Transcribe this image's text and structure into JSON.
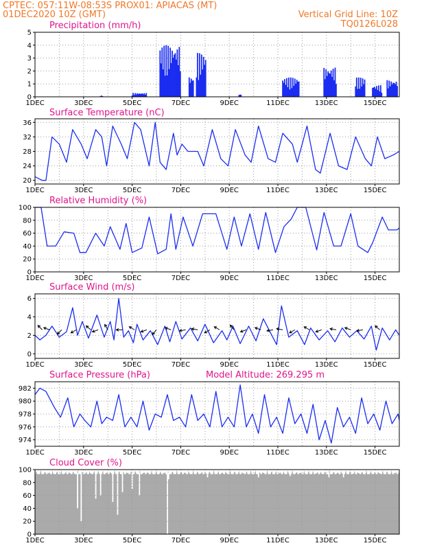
{
  "header": {
    "line1_left": "CPTEC:   057:11W-08:53S   PROX01: APIACAS (MT)",
    "line2_left": "01DEC2020 10Z (GMT)",
    "line2_right": "Vertical Grid Line: 10Z",
    "line3_right": "TQ0126L028"
  },
  "colors": {
    "header": "#f07828",
    "title": "#e0148c",
    "series": "#1a2cf0",
    "cloud": "#aaaaaa"
  },
  "x_tick_labels": [
    "1DEC",
    "3DEC",
    "5DEC",
    "7DEC",
    "9DEC",
    "11DEC",
    "13DEC",
    "15DEC"
  ],
  "chart_data": [
    {
      "id": "precip",
      "type": "bar",
      "title": "Precipitation (mm/h)",
      "ylim": [
        0,
        5
      ],
      "yticks": [
        0,
        1,
        2,
        3,
        4,
        5
      ],
      "x_day_start": 1,
      "x_day_end": 16,
      "step_hours": 1,
      "values_pattern": [
        [
          5.0,
          5.6,
          0.3
        ],
        [
          6.15,
          7.0,
          4.0
        ],
        [
          7.35,
          7.55,
          1.6
        ],
        [
          7.65,
          8.05,
          3.4
        ],
        [
          11.2,
          11.9,
          1.5
        ],
        [
          12.9,
          13.4,
          2.3
        ],
        [
          14.2,
          14.6,
          1.5
        ],
        [
          14.9,
          15.3,
          0.9
        ],
        [
          15.5,
          15.95,
          1.3
        ],
        [
          3.7,
          3.8,
          0.1
        ],
        [
          9.4,
          9.5,
          0.2
        ]
      ],
      "grid": "dotted"
    },
    {
      "id": "temp",
      "type": "line",
      "title": "Surface Temperature (nC)",
      "ylim": [
        19,
        37
      ],
      "yticks": [
        20,
        24,
        28,
        32,
        36
      ],
      "x_days": [
        1.0,
        1.3,
        1.45,
        1.7,
        2.0,
        2.3,
        2.55,
        2.9,
        3.15,
        3.5,
        3.75,
        3.95,
        4.2,
        4.55,
        4.8,
        5.1,
        5.35,
        5.7,
        5.95,
        6.15,
        6.4,
        6.7,
        6.85,
        7.05,
        7.3,
        7.7,
        7.95,
        8.3,
        8.65,
        8.95,
        9.25,
        9.65,
        9.9,
        10.2,
        10.6,
        10.9,
        11.2,
        11.6,
        11.8,
        12.2,
        12.55,
        12.75,
        13.15,
        13.5,
        13.85,
        14.2,
        14.6,
        14.85,
        15.1,
        15.4,
        15.75,
        16.0
      ],
      "values": [
        21,
        20,
        20,
        32,
        30,
        25,
        34,
        30,
        26,
        34,
        32,
        24,
        35,
        30,
        26,
        36,
        34,
        24,
        36,
        25,
        23,
        33,
        27,
        30,
        28,
        28,
        24,
        34,
        26,
        24,
        34,
        27,
        25,
        35,
        26,
        25,
        33,
        30,
        25,
        35,
        23,
        22,
        33,
        24,
        23,
        32,
        26,
        24,
        32,
        26,
        27,
        28
      ],
      "grid": "dotted"
    },
    {
      "id": "rh",
      "type": "line",
      "title": "Relative Humidity (%)",
      "ylim": [
        0,
        100
      ],
      "yticks": [
        0,
        20,
        40,
        60,
        80,
        100
      ],
      "x_days": [
        1.0,
        1.25,
        1.5,
        1.85,
        2.2,
        2.6,
        2.85,
        3.1,
        3.5,
        3.85,
        4.1,
        4.5,
        4.75,
        5.0,
        5.4,
        5.7,
        6.05,
        6.4,
        6.6,
        6.8,
        7.1,
        7.5,
        7.9,
        8.2,
        8.45,
        8.9,
        9.2,
        9.5,
        9.85,
        10.2,
        10.5,
        10.9,
        11.25,
        11.55,
        11.8,
        12.15,
        12.6,
        12.9,
        13.3,
        13.6,
        14.0,
        14.3,
        14.7,
        14.9,
        15.3,
        15.55,
        15.9,
        16.0
      ],
      "values": [
        100,
        100,
        40,
        40,
        62,
        60,
        30,
        30,
        60,
        40,
        70,
        35,
        75,
        30,
        37,
        85,
        28,
        35,
        90,
        35,
        85,
        40,
        90,
        90,
        90,
        35,
        85,
        40,
        90,
        35,
        92,
        30,
        70,
        82,
        100,
        100,
        34,
        92,
        40,
        40,
        90,
        40,
        30,
        45,
        85,
        65,
        65,
        68
      ],
      "grid": "dotted"
    },
    {
      "id": "wind",
      "type": "line",
      "title": "Surface Wind (m/s)",
      "ylim": [
        -0.5,
        6.5
      ],
      "yticks": [
        0,
        2,
        4,
        6
      ],
      "x_days": [
        1.0,
        1.2,
        1.45,
        1.7,
        2.0,
        2.3,
        2.55,
        2.75,
        2.95,
        3.2,
        3.55,
        3.85,
        4.1,
        4.25,
        4.45,
        4.65,
        4.85,
        5.05,
        5.2,
        5.45,
        5.75,
        6.05,
        6.35,
        6.55,
        6.8,
        7.05,
        7.4,
        7.7,
        8.0,
        8.35,
        8.7,
        8.9,
        9.15,
        9.45,
        9.8,
        10.1,
        10.4,
        10.75,
        10.95,
        11.15,
        11.45,
        11.8,
        12.1,
        12.35,
        12.7,
        13.05,
        13.35,
        13.65,
        13.95,
        14.25,
        14.55,
        14.85,
        15.05,
        15.3,
        15.6,
        15.85,
        16.0
      ],
      "values": [
        2.0,
        1.5,
        2.0,
        3.0,
        1.8,
        2.4,
        5.0,
        2.0,
        3.5,
        1.7,
        4.2,
        1.8,
        3.5,
        1.5,
        6.0,
        1.8,
        2.5,
        1.2,
        3.2,
        1.5,
        2.5,
        1.0,
        3.0,
        1.3,
        3.5,
        1.6,
        2.8,
        1.4,
        3.2,
        1.2,
        2.5,
        1.5,
        3.0,
        1.1,
        3.0,
        1.4,
        3.8,
        2.0,
        1.0,
        5.2,
        1.8,
        2.5,
        1.0,
        2.8,
        1.5,
        2.5,
        1.3,
        2.8,
        1.8,
        2.5,
        1.6,
        3.0,
        0.4,
        2.8,
        1.5,
        2.6,
        2.0
      ],
      "barbs_x_days": [
        1.3,
        1.6,
        2.1,
        2.7,
        3.3,
        3.6,
        4.0,
        4.6,
        5.1,
        5.6,
        6.0,
        6.6,
        7.2,
        7.7,
        8.2,
        8.6,
        9.2,
        9.7,
        10.3,
        10.8,
        11.2,
        11.7,
        12.3,
        12.8,
        13.4,
        14.0,
        14.5,
        15.2
      ],
      "barbs_angles_deg": [
        135,
        160,
        225,
        210,
        140,
        200,
        120,
        180,
        150,
        200,
        230,
        160,
        190,
        170,
        210,
        150,
        130,
        200,
        160,
        190,
        170,
        210,
        150,
        200,
        170,
        160,
        190,
        140
      ],
      "grid": "dotted"
    },
    {
      "id": "pressure",
      "type": "line",
      "title": "Surface Pressure (hPa)",
      "annotation": "Model Altitude: 269.295 m",
      "ylim": [
        973,
        983
      ],
      "yticks": [
        974,
        976,
        978,
        980,
        982
      ],
      "x_days": [
        1.0,
        1.2,
        1.45,
        1.8,
        2.05,
        2.35,
        2.6,
        2.85,
        3.05,
        3.3,
        3.55,
        3.75,
        3.95,
        4.2,
        4.45,
        4.7,
        4.95,
        5.2,
        5.45,
        5.7,
        5.95,
        6.2,
        6.45,
        6.7,
        6.95,
        7.2,
        7.45,
        7.7,
        7.95,
        8.2,
        8.45,
        8.7,
        8.95,
        9.2,
        9.45,
        9.7,
        9.95,
        10.2,
        10.45,
        10.7,
        10.95,
        11.2,
        11.45,
        11.7,
        11.95,
        12.2,
        12.45,
        12.7,
        12.95,
        13.2,
        13.45,
        13.7,
        13.95,
        14.2,
        14.45,
        14.7,
        14.95,
        15.2,
        15.45,
        15.7,
        15.95,
        16.0
      ],
      "values": [
        981,
        982,
        981.5,
        979,
        977.5,
        980.5,
        976,
        978,
        977,
        976,
        980,
        976.5,
        977.5,
        977,
        981,
        976,
        977.5,
        976,
        980,
        975.5,
        978,
        977.5,
        981,
        977,
        977.5,
        976,
        981,
        977,
        978,
        976,
        981.5,
        976,
        977.5,
        976,
        982.5,
        976,
        978,
        975,
        981,
        976,
        977.5,
        975,
        980.5,
        976.5,
        978,
        975,
        979.5,
        974,
        977,
        973.5,
        979,
        976,
        977.5,
        975,
        980.5,
        976.5,
        978,
        975.5,
        980,
        976.5,
        978,
        977
      ],
      "grid": "dotted"
    },
    {
      "id": "cloud",
      "type": "area",
      "title": "Cloud Cover (%)",
      "ylim": [
        0,
        100
      ],
      "yticks": [
        0,
        20,
        40,
        60,
        80,
        100
      ],
      "x_day_start": 1,
      "x_day_end": 16,
      "drops_days": [
        2.75,
        2.9,
        3.5,
        3.7,
        4.2,
        4.4,
        4.6,
        5.0,
        5.3,
        6.45,
        6.5,
        8.1,
        10.2,
        11.5,
        13.1,
        13.7
      ],
      "drops_values": [
        40,
        20,
        55,
        60,
        50,
        30,
        65,
        70,
        60,
        0,
        85,
        88,
        88,
        90,
        88,
        88
      ],
      "baseline": 93,
      "grid": "dotted"
    }
  ]
}
